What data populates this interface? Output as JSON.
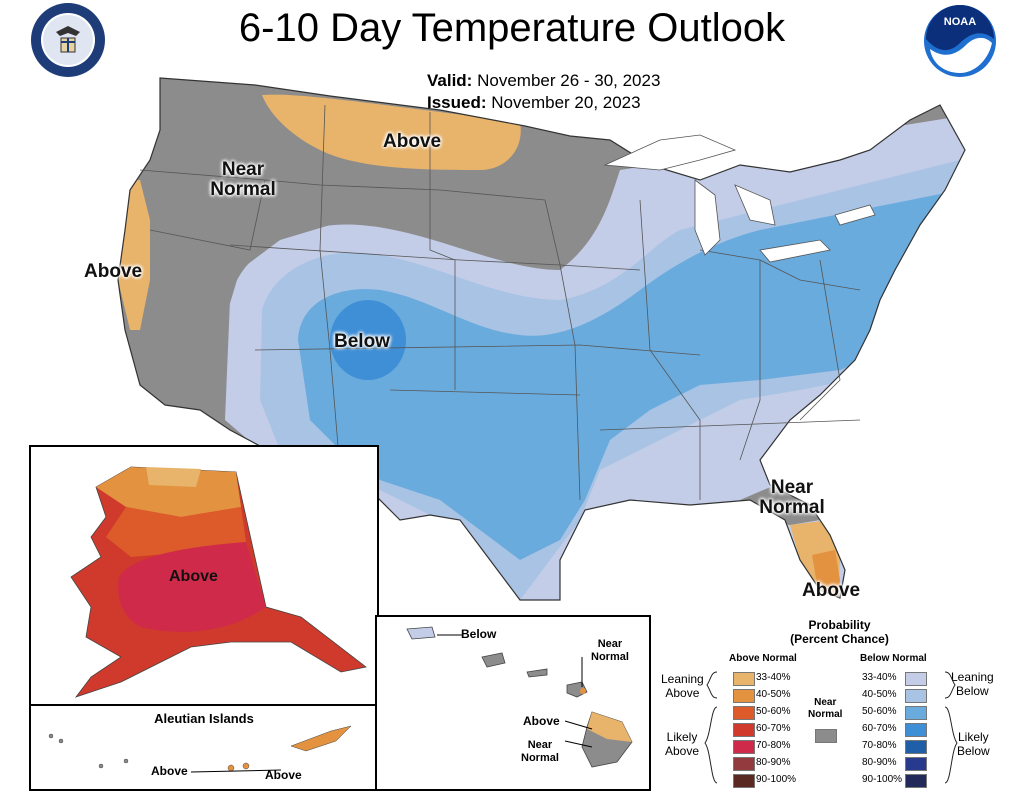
{
  "header": {
    "title": "6-10 Day Temperature Outlook",
    "valid_label": "Valid:",
    "valid_dates": "November 26 - 30, 2023",
    "issued_label": "Issued:",
    "issued_date": "November 20, 2023"
  },
  "logos": {
    "left": "Department of Commerce seal",
    "right_text": "NOAA"
  },
  "map_labels": {
    "conus": {
      "above_north": "Above",
      "near_normal_nw_1": "Near",
      "near_normal_nw_2": "Normal",
      "above_west": "Above",
      "below_center": "Below",
      "near_normal_se_1": "Near",
      "near_normal_se_2": "Normal",
      "above_florida": "Above"
    },
    "alaska": {
      "above": "Above"
    },
    "aleutian": {
      "title": "Aleutian Islands",
      "above_1": "Above",
      "above_2": "Above"
    },
    "hawaii": {
      "below": "Below",
      "near_normal_1": "Near",
      "near_normal_2": "Normal",
      "above": "Above",
      "near_normal_b1": "Near",
      "near_normal_b2": "Normal"
    }
  },
  "legend": {
    "title_1": "Probability",
    "title_2": "(Percent Chance)",
    "above_header": "Above Normal",
    "below_header": "Below Normal",
    "near_normal_1": "Near",
    "near_normal_2": "Normal",
    "leaning_above_1": "Leaning",
    "leaning_above_2": "Above",
    "likely_above_1": "Likely",
    "likely_above_2": "Above",
    "leaning_below_1": "Leaning",
    "leaning_below_2": "Below",
    "likely_below_1": "Likely",
    "likely_below_2": "Below",
    "above_bins": [
      {
        "label": "33-40%",
        "color": "#e8b36a"
      },
      {
        "label": "40-50%",
        "color": "#e3923f"
      },
      {
        "label": "50-60%",
        "color": "#dd5a2a"
      },
      {
        "label": "60-70%",
        "color": "#d03a2c"
      },
      {
        "label": "70-80%",
        "color": "#cf2a4a"
      },
      {
        "label": "80-90%",
        "color": "#933a3e"
      },
      {
        "label": "90-100%",
        "color": "#5a2a22"
      }
    ],
    "below_bins": [
      {
        "label": "33-40%",
        "color": "#c3cde8"
      },
      {
        "label": "40-50%",
        "color": "#a9c3e5"
      },
      {
        "label": "50-60%",
        "color": "#6aabde"
      },
      {
        "label": "60-70%",
        "color": "#3f8fd6"
      },
      {
        "label": "70-80%",
        "color": "#1f5fa8"
      },
      {
        "label": "80-90%",
        "color": "#283a8e"
      },
      {
        "label": "90-100%",
        "color": "#222a5a"
      }
    ],
    "near_normal_color": "#8c8c8c"
  }
}
